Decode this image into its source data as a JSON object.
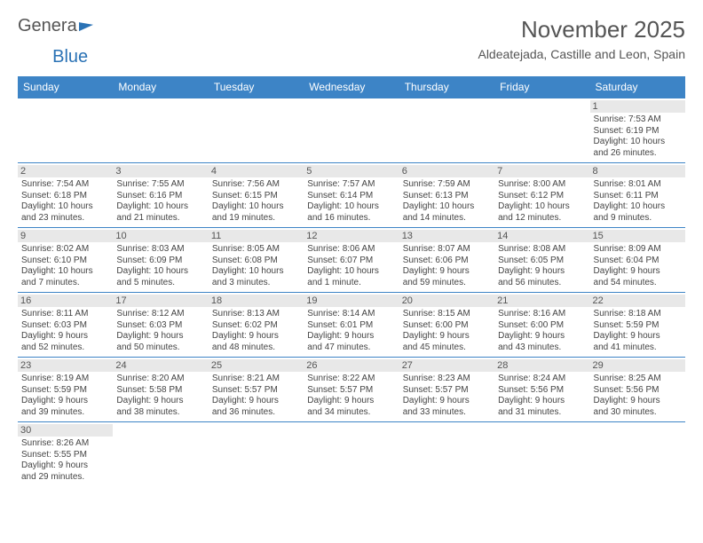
{
  "logo": {
    "text1": "Genera",
    "text2": "Blue"
  },
  "title": "November 2025",
  "subtitle": "Aldeatejada, Castille and Leon, Spain",
  "colors": {
    "accent": "#3d84c6",
    "header_text": "#ffffff",
    "daynum_bg": "#e8e8e8",
    "text": "#444444",
    "title_color": "#555555"
  },
  "weekdays": [
    "Sunday",
    "Monday",
    "Tuesday",
    "Wednesday",
    "Thursday",
    "Friday",
    "Saturday"
  ],
  "weeks": [
    [
      null,
      null,
      null,
      null,
      null,
      null,
      {
        "n": "1",
        "sr": "Sunrise: 7:53 AM",
        "ss": "Sunset: 6:19 PM",
        "d1": "Daylight: 10 hours",
        "d2": "and 26 minutes."
      }
    ],
    [
      {
        "n": "2",
        "sr": "Sunrise: 7:54 AM",
        "ss": "Sunset: 6:18 PM",
        "d1": "Daylight: 10 hours",
        "d2": "and 23 minutes."
      },
      {
        "n": "3",
        "sr": "Sunrise: 7:55 AM",
        "ss": "Sunset: 6:16 PM",
        "d1": "Daylight: 10 hours",
        "d2": "and 21 minutes."
      },
      {
        "n": "4",
        "sr": "Sunrise: 7:56 AM",
        "ss": "Sunset: 6:15 PM",
        "d1": "Daylight: 10 hours",
        "d2": "and 19 minutes."
      },
      {
        "n": "5",
        "sr": "Sunrise: 7:57 AM",
        "ss": "Sunset: 6:14 PM",
        "d1": "Daylight: 10 hours",
        "d2": "and 16 minutes."
      },
      {
        "n": "6",
        "sr": "Sunrise: 7:59 AM",
        "ss": "Sunset: 6:13 PM",
        "d1": "Daylight: 10 hours",
        "d2": "and 14 minutes."
      },
      {
        "n": "7",
        "sr": "Sunrise: 8:00 AM",
        "ss": "Sunset: 6:12 PM",
        "d1": "Daylight: 10 hours",
        "d2": "and 12 minutes."
      },
      {
        "n": "8",
        "sr": "Sunrise: 8:01 AM",
        "ss": "Sunset: 6:11 PM",
        "d1": "Daylight: 10 hours",
        "d2": "and 9 minutes."
      }
    ],
    [
      {
        "n": "9",
        "sr": "Sunrise: 8:02 AM",
        "ss": "Sunset: 6:10 PM",
        "d1": "Daylight: 10 hours",
        "d2": "and 7 minutes."
      },
      {
        "n": "10",
        "sr": "Sunrise: 8:03 AM",
        "ss": "Sunset: 6:09 PM",
        "d1": "Daylight: 10 hours",
        "d2": "and 5 minutes."
      },
      {
        "n": "11",
        "sr": "Sunrise: 8:05 AM",
        "ss": "Sunset: 6:08 PM",
        "d1": "Daylight: 10 hours",
        "d2": "and 3 minutes."
      },
      {
        "n": "12",
        "sr": "Sunrise: 8:06 AM",
        "ss": "Sunset: 6:07 PM",
        "d1": "Daylight: 10 hours",
        "d2": "and 1 minute."
      },
      {
        "n": "13",
        "sr": "Sunrise: 8:07 AM",
        "ss": "Sunset: 6:06 PM",
        "d1": "Daylight: 9 hours",
        "d2": "and 59 minutes."
      },
      {
        "n": "14",
        "sr": "Sunrise: 8:08 AM",
        "ss": "Sunset: 6:05 PM",
        "d1": "Daylight: 9 hours",
        "d2": "and 56 minutes."
      },
      {
        "n": "15",
        "sr": "Sunrise: 8:09 AM",
        "ss": "Sunset: 6:04 PM",
        "d1": "Daylight: 9 hours",
        "d2": "and 54 minutes."
      }
    ],
    [
      {
        "n": "16",
        "sr": "Sunrise: 8:11 AM",
        "ss": "Sunset: 6:03 PM",
        "d1": "Daylight: 9 hours",
        "d2": "and 52 minutes."
      },
      {
        "n": "17",
        "sr": "Sunrise: 8:12 AM",
        "ss": "Sunset: 6:03 PM",
        "d1": "Daylight: 9 hours",
        "d2": "and 50 minutes."
      },
      {
        "n": "18",
        "sr": "Sunrise: 8:13 AM",
        "ss": "Sunset: 6:02 PM",
        "d1": "Daylight: 9 hours",
        "d2": "and 48 minutes."
      },
      {
        "n": "19",
        "sr": "Sunrise: 8:14 AM",
        "ss": "Sunset: 6:01 PM",
        "d1": "Daylight: 9 hours",
        "d2": "and 47 minutes."
      },
      {
        "n": "20",
        "sr": "Sunrise: 8:15 AM",
        "ss": "Sunset: 6:00 PM",
        "d1": "Daylight: 9 hours",
        "d2": "and 45 minutes."
      },
      {
        "n": "21",
        "sr": "Sunrise: 8:16 AM",
        "ss": "Sunset: 6:00 PM",
        "d1": "Daylight: 9 hours",
        "d2": "and 43 minutes."
      },
      {
        "n": "22",
        "sr": "Sunrise: 8:18 AM",
        "ss": "Sunset: 5:59 PM",
        "d1": "Daylight: 9 hours",
        "d2": "and 41 minutes."
      }
    ],
    [
      {
        "n": "23",
        "sr": "Sunrise: 8:19 AM",
        "ss": "Sunset: 5:59 PM",
        "d1": "Daylight: 9 hours",
        "d2": "and 39 minutes."
      },
      {
        "n": "24",
        "sr": "Sunrise: 8:20 AM",
        "ss": "Sunset: 5:58 PM",
        "d1": "Daylight: 9 hours",
        "d2": "and 38 minutes."
      },
      {
        "n": "25",
        "sr": "Sunrise: 8:21 AM",
        "ss": "Sunset: 5:57 PM",
        "d1": "Daylight: 9 hours",
        "d2": "and 36 minutes."
      },
      {
        "n": "26",
        "sr": "Sunrise: 8:22 AM",
        "ss": "Sunset: 5:57 PM",
        "d1": "Daylight: 9 hours",
        "d2": "and 34 minutes."
      },
      {
        "n": "27",
        "sr": "Sunrise: 8:23 AM",
        "ss": "Sunset: 5:57 PM",
        "d1": "Daylight: 9 hours",
        "d2": "and 33 minutes."
      },
      {
        "n": "28",
        "sr": "Sunrise: 8:24 AM",
        "ss": "Sunset: 5:56 PM",
        "d1": "Daylight: 9 hours",
        "d2": "and 31 minutes."
      },
      {
        "n": "29",
        "sr": "Sunrise: 8:25 AM",
        "ss": "Sunset: 5:56 PM",
        "d1": "Daylight: 9 hours",
        "d2": "and 30 minutes."
      }
    ],
    [
      {
        "n": "30",
        "sr": "Sunrise: 8:26 AM",
        "ss": "Sunset: 5:55 PM",
        "d1": "Daylight: 9 hours",
        "d2": "and 29 minutes."
      },
      null,
      null,
      null,
      null,
      null,
      null
    ]
  ]
}
